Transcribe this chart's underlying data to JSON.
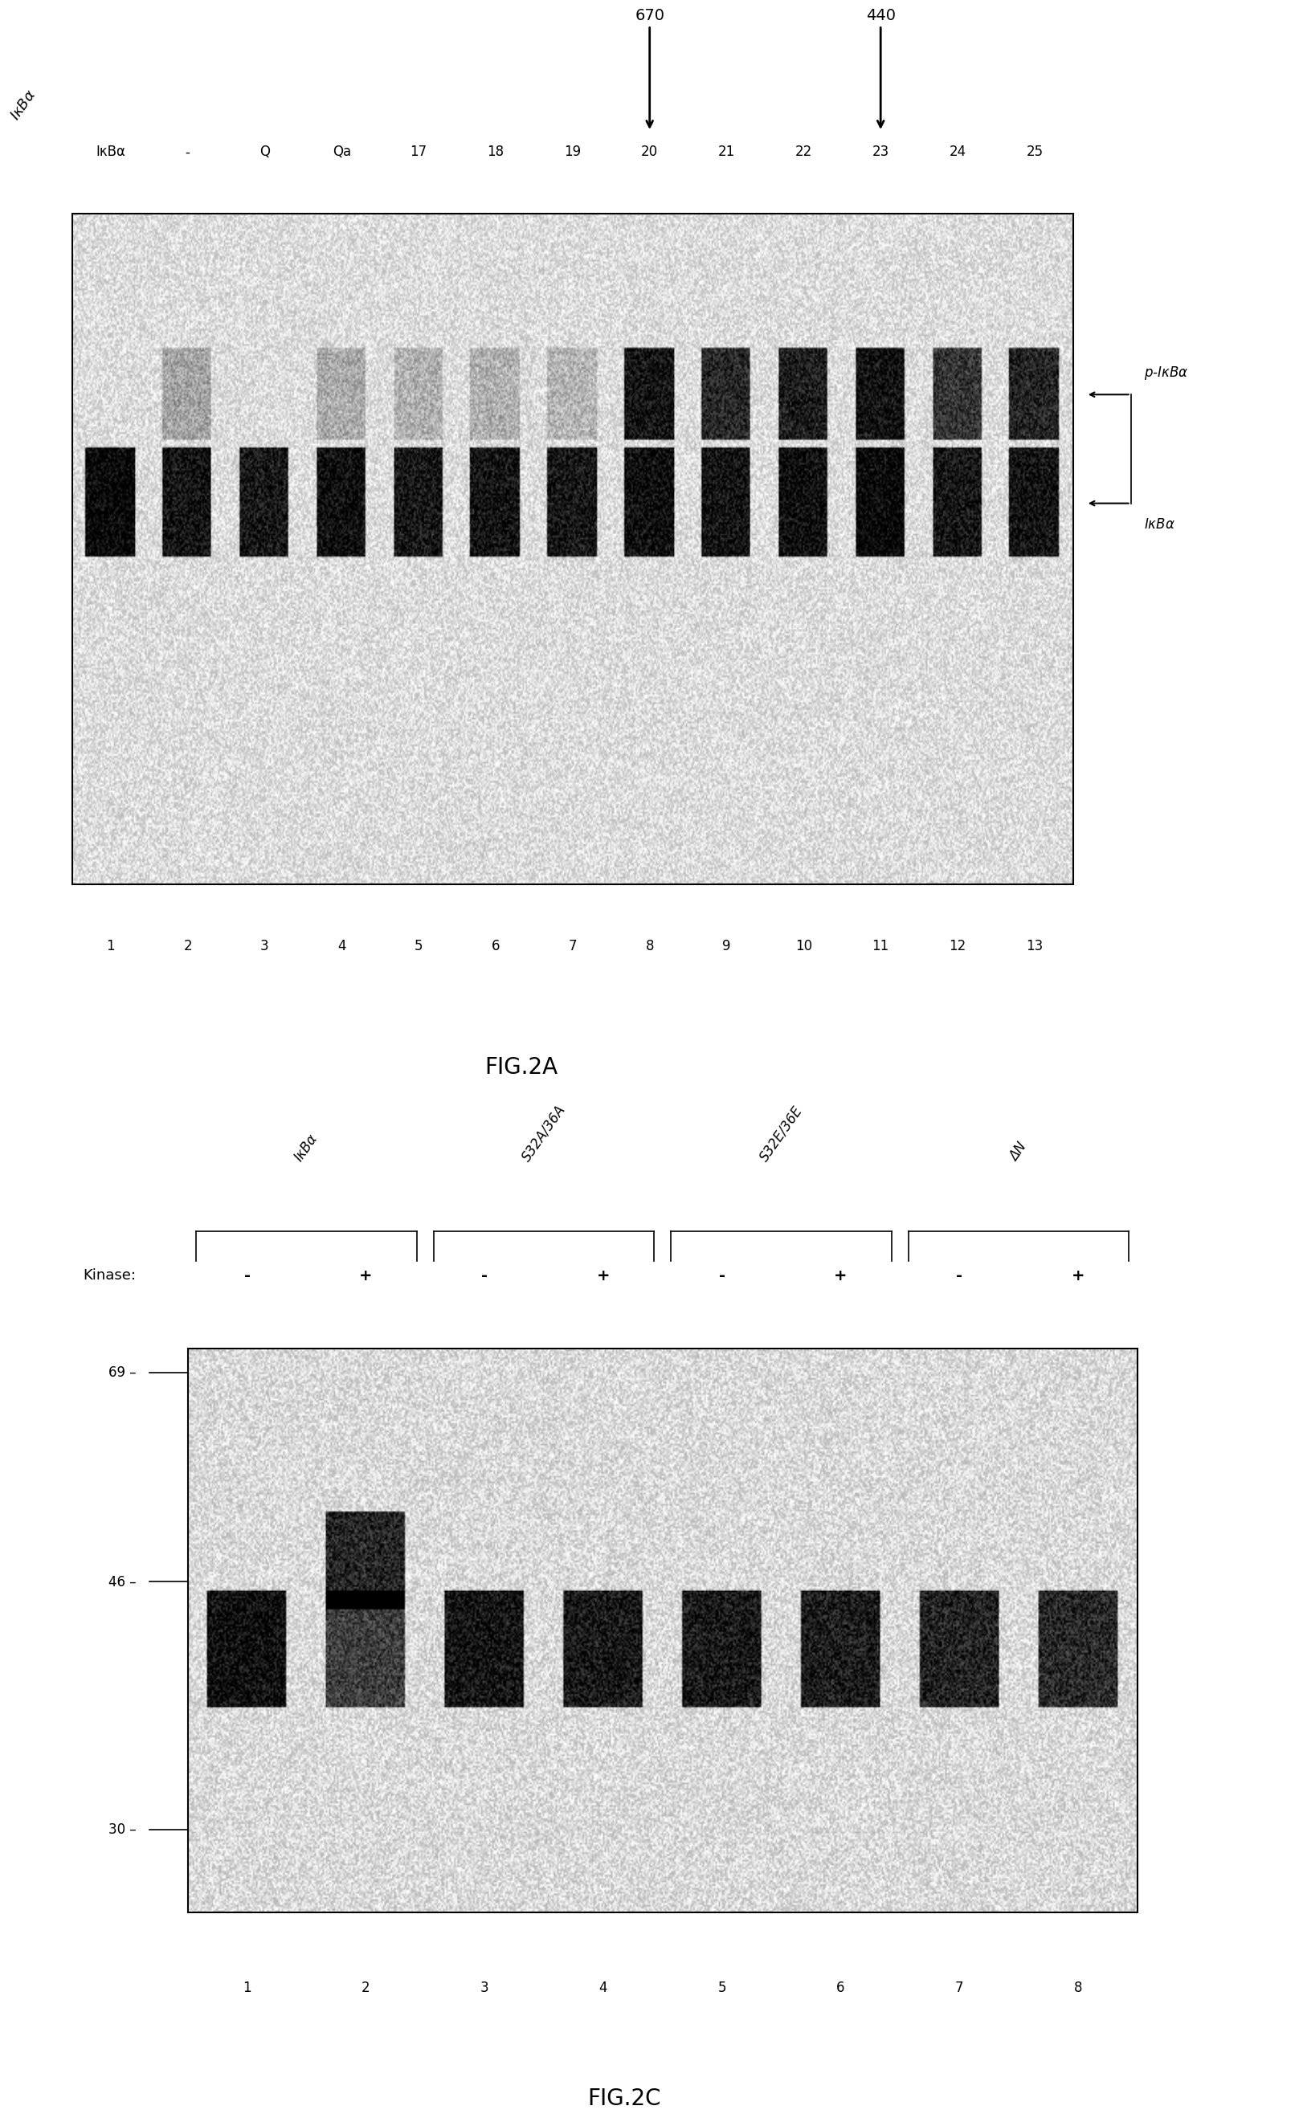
{
  "fig2a": {
    "title": "FIG.2A",
    "top_labels_row1": [
      "IκBα",
      "-",
      "Q",
      "Qa",
      "17",
      "18",
      "19",
      "20",
      "21",
      "22",
      "23",
      "24",
      "25"
    ],
    "bottom_labels": [
      "1",
      "2",
      "3",
      "4",
      "5",
      "6",
      "7",
      "8",
      "9",
      "10",
      "11",
      "12",
      "13"
    ],
    "arrow_670_lane": 7,
    "arrow_440_lane": 10,
    "right_label_upper": "p-IκBα",
    "right_label_lower": "IκBα",
    "num_lanes": 13,
    "upper_intensities": [
      0.0,
      0.18,
      0.0,
      0.15,
      0.12,
      0.12,
      0.1,
      0.88,
      0.78,
      0.84,
      0.9,
      0.72,
      0.8
    ],
    "lower_intensities": [
      0.9,
      0.84,
      0.82,
      0.86,
      0.82,
      0.84,
      0.82,
      0.86,
      0.84,
      0.86,
      0.9,
      0.82,
      0.84
    ]
  },
  "fig2c": {
    "title": "FIG.2C",
    "group_labels": [
      "IκBα",
      "S32A/36A",
      "S32E/36E",
      "ΔN"
    ],
    "kinase_labels": [
      "-",
      "+",
      "-",
      "+",
      "-",
      "+",
      "-",
      "+"
    ],
    "bottom_labels": [
      "1",
      "2",
      "3",
      "4",
      "5",
      "6",
      "7",
      "8"
    ],
    "mw_markers": [
      "69",
      "46",
      "30"
    ],
    "num_lanes": 8,
    "lower_intensities": [
      0.85,
      0.62,
      0.82,
      0.8,
      0.8,
      0.78,
      0.75,
      0.72
    ],
    "upper_intensities": [
      0.0,
      0.78,
      0.0,
      0.0,
      0.0,
      0.0,
      0.0,
      0.0
    ]
  },
  "background_color": "#ffffff"
}
